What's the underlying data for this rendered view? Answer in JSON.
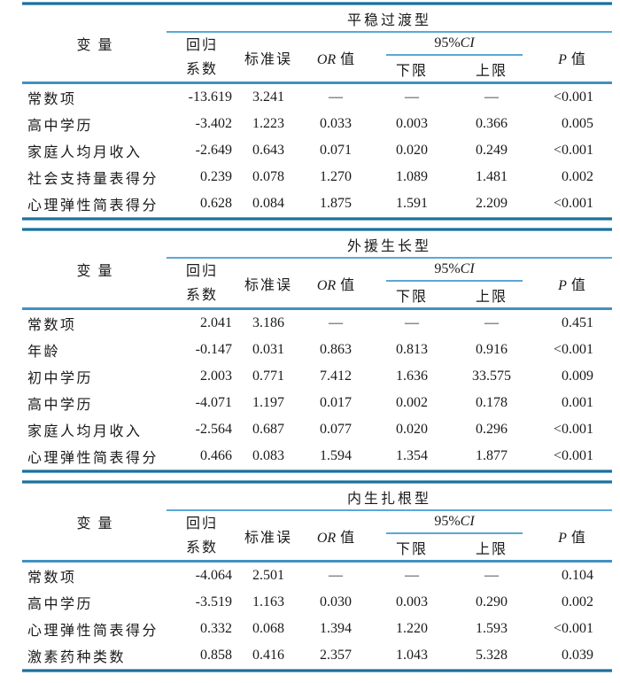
{
  "colors": {
    "rule_dark": "#1f6f9a",
    "rule_mid": "#4191c1",
    "rule_light": "#5aa8d6",
    "text": "#1a1a1a",
    "background": "#ffffff"
  },
  "columns": {
    "variable": "变量",
    "coef_line1": "回归",
    "coef_line2": "系数",
    "se": "标准误",
    "or_italic": "OR",
    "or_rest": "值",
    "ci_normal": "95%",
    "ci_italic": "CI",
    "ci_lower": "下限",
    "ci_upper": "上限",
    "p_italic": "P",
    "p_rest": "值"
  },
  "tables": [
    {
      "title": "平稳过渡型",
      "rows": [
        {
          "variable": "常数项",
          "coef": "-13.619",
          "se": "3.241",
          "or": "—",
          "lower": "—",
          "upper": "—",
          "p": "<0.001"
        },
        {
          "variable": "高中学历",
          "coef": "-3.402",
          "se": "1.223",
          "or": "0.033",
          "lower": "0.003",
          "upper": "0.366",
          "p": "0.005"
        },
        {
          "variable": "家庭人均月收入",
          "coef": "-2.649",
          "se": "0.643",
          "or": "0.071",
          "lower": "0.020",
          "upper": "0.249",
          "p": "<0.001"
        },
        {
          "variable": "社会支持量表得分",
          "coef": "0.239",
          "se": "0.078",
          "or": "1.270",
          "lower": "1.089",
          "upper": "1.481",
          "p": "0.002"
        },
        {
          "variable": "心理弹性简表得分",
          "coef": "0.628",
          "se": "0.084",
          "or": "1.875",
          "lower": "1.591",
          "upper": "2.209",
          "p": "<0.001"
        }
      ]
    },
    {
      "title": "外援生长型",
      "rows": [
        {
          "variable": "常数项",
          "coef": "2.041",
          "se": "3.186",
          "or": "—",
          "lower": "—",
          "upper": "—",
          "p": "0.451"
        },
        {
          "variable": "年龄",
          "coef": "-0.147",
          "se": "0.031",
          "or": "0.863",
          "lower": "0.813",
          "upper": "0.916",
          "p": "<0.001"
        },
        {
          "variable": "初中学历",
          "coef": "2.003",
          "se": "0.771",
          "or": "7.412",
          "lower": "1.636",
          "upper": "33.575",
          "p": "0.009"
        },
        {
          "variable": "高中学历",
          "coef": "-4.071",
          "se": "1.197",
          "or": "0.017",
          "lower": "0.002",
          "upper": "0.178",
          "p": "0.001"
        },
        {
          "variable": "家庭人均月收入",
          "coef": "-2.564",
          "se": "0.687",
          "or": "0.077",
          "lower": "0.020",
          "upper": "0.296",
          "p": "<0.001"
        },
        {
          "variable": "心理弹性简表得分",
          "coef": "0.466",
          "se": "0.083",
          "or": "1.594",
          "lower": "1.354",
          "upper": "1.877",
          "p": "<0.001"
        }
      ]
    },
    {
      "title": "内生扎根型",
      "rows": [
        {
          "variable": "常数项",
          "coef": "-4.064",
          "se": "2.501",
          "or": "—",
          "lower": "—",
          "upper": "—",
          "p": "0.104"
        },
        {
          "variable": "高中学历",
          "coef": "-3.519",
          "se": "1.163",
          "or": "0.030",
          "lower": "0.003",
          "upper": "0.290",
          "p": "0.002"
        },
        {
          "variable": "心理弹性简表得分",
          "coef": "0.332",
          "se": "0.068",
          "or": "1.394",
          "lower": "1.220",
          "upper": "1.593",
          "p": "<0.001"
        },
        {
          "variable": "激素药种类数",
          "coef": "0.858",
          "se": "0.416",
          "or": "2.357",
          "lower": "1.043",
          "upper": "5.328",
          "p": "0.039"
        }
      ]
    }
  ]
}
